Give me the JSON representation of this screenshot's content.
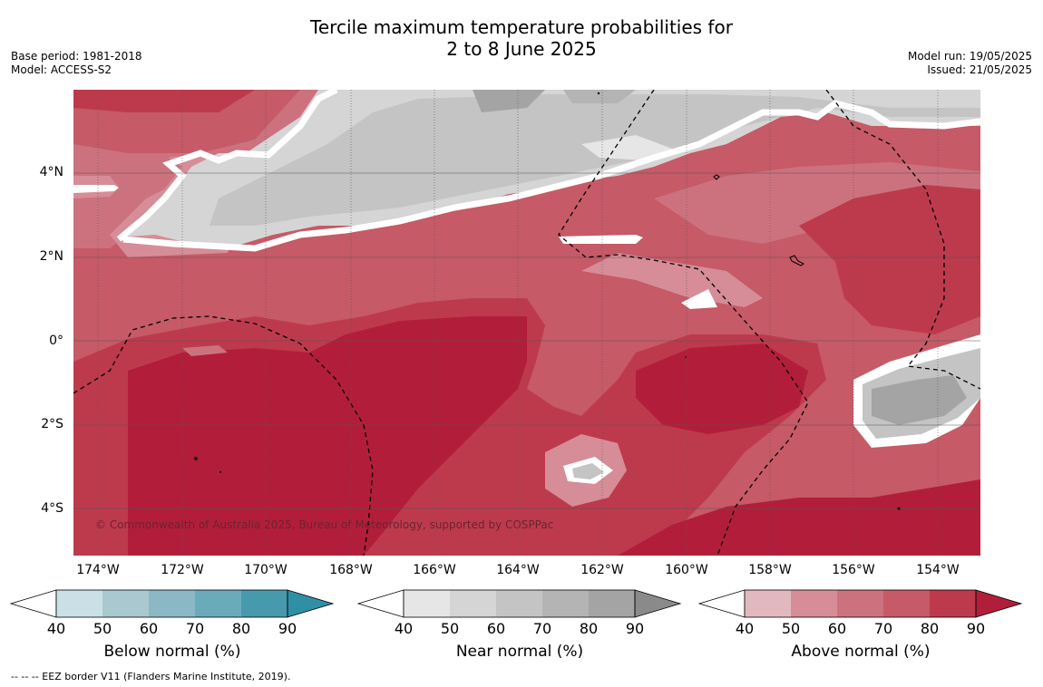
{
  "title": {
    "line1": "Tercile maximum temperature probabilities for",
    "line2": "2 to 8 June 2025"
  },
  "meta_left": {
    "base_period": "Base period: 1981-2018",
    "model": "Model: ACCESS-S2"
  },
  "meta_right": {
    "model_run": "Model run: 19/05/2025",
    "issued": "Issued: 21/05/2025"
  },
  "map": {
    "copyright": "© Commonwealth of Australia 2025, Bureau of Meteorology, supported by COSPPac",
    "lat_labels": [
      "4°N",
      "2°N",
      "0°",
      "2°S",
      "4°S"
    ],
    "lon_labels": [
      "174°W",
      "172°W",
      "170°W",
      "168°W",
      "166°W",
      "164°W",
      "162°W",
      "160°W",
      "158°W",
      "156°W",
      "154°W"
    ]
  },
  "colorbars": [
    {
      "title": "Below normal (%)",
      "ticks": [
        "40",
        "50",
        "60",
        "70",
        "80",
        "90"
      ],
      "colors": [
        "#c9e0e7",
        "#a9c8cf",
        "#8cb8c6",
        "#6aabba",
        "#469aab",
        "#2f8fa5"
      ]
    },
    {
      "title": "Near normal (%)",
      "ticks": [
        "40",
        "50",
        "60",
        "70",
        "80",
        "90"
      ],
      "colors": [
        "#e6e6e6",
        "#d5d5d5",
        "#c4c4c4",
        "#b4b4b4",
        "#a4a4a4",
        "#8a8a8a"
      ]
    },
    {
      "title": "Above normal (%)",
      "ticks": [
        "40",
        "50",
        "60",
        "70",
        "80",
        "90"
      ],
      "colors": [
        "#e2b8bf",
        "#d68d97",
        "#cc727e",
        "#c65a67",
        "#bd3a4c",
        "#b21e39"
      ]
    }
  ],
  "eez_note": "--  --  -- EEZ border V11 (Flanders Marine Institute, 2019)."
}
